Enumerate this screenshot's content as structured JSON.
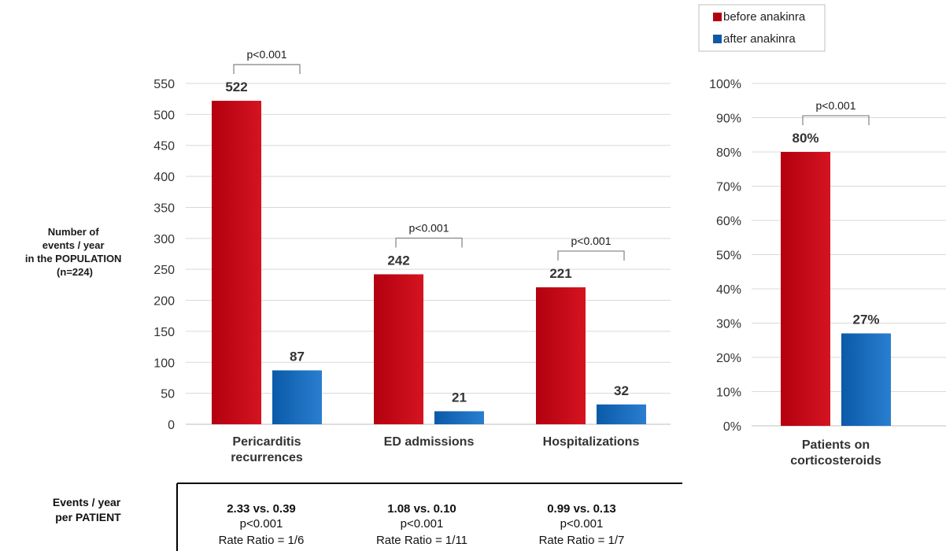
{
  "colors": {
    "before": "#b3000f",
    "before_light": "#d41420",
    "after": "#0a5aa8",
    "after_light": "#2a7ed0",
    "grid": "#d9d9d9",
    "bracket": "#8c8c8c"
  },
  "legend": {
    "before": "before anakinra",
    "after": "after anakinra"
  },
  "left_ylabel": [
    "Number of",
    "events / year",
    "in the POPULATION",
    "(n=224)"
  ],
  "right_ylabel": [],
  "table": {
    "row_label": [
      "Events / year",
      "per PATIENT"
    ],
    "cells": [
      {
        "ratio": "2.33 vs. 0.39",
        "p": "p<0.001",
        "rr": "Rate Ratio = 1/6"
      },
      {
        "ratio": "1.08 vs. 0.10",
        "p": "p<0.001",
        "rr": "Rate Ratio = 1/11"
      },
      {
        "ratio": "0.99 vs. 0.13",
        "p": "p<0.001",
        "rr": "Rate Ratio = 1/7"
      }
    ]
  },
  "chart_data": [
    {
      "type": "bar",
      "title": "",
      "ylabel": "Number of events / year in the POPULATION (n=224)",
      "ylim": [
        0,
        550
      ],
      "yticks": [
        0,
        50,
        100,
        150,
        200,
        250,
        300,
        350,
        400,
        450,
        500,
        550
      ],
      "ytick_labels": [
        "0",
        "50",
        "100",
        "150",
        "200",
        "250",
        "300",
        "350",
        "400",
        "450",
        "500",
        "550"
      ],
      "grid": true,
      "legend": "top-right",
      "categories": [
        [
          "Pericarditis",
          "recurrences"
        ],
        [
          "ED admissions"
        ],
        [
          "Hospitalizations"
        ]
      ],
      "series": [
        {
          "name": "before anakinra",
          "values": [
            522,
            242,
            221
          ],
          "labels": [
            "522",
            "242",
            "221"
          ]
        },
        {
          "name": "after anakinra",
          "values": [
            87,
            21,
            32
          ],
          "labels": [
            "87",
            "21",
            "32"
          ]
        }
      ],
      "annotations": [
        "p<0.001",
        "p<0.001",
        "p<0.001"
      ]
    },
    {
      "type": "bar",
      "title": "",
      "ylabel": "",
      "ylim": [
        0,
        100
      ],
      "yticks": [
        0,
        10,
        20,
        30,
        40,
        50,
        60,
        70,
        80,
        90,
        100
      ],
      "ytick_labels": [
        "0%",
        "10%",
        "20%",
        "30%",
        "40%",
        "50%",
        "60%",
        "70%",
        "80%",
        "90%",
        "100%"
      ],
      "grid": true,
      "categories": [
        [
          "Patients on",
          "corticosteroids"
        ]
      ],
      "series": [
        {
          "name": "before anakinra",
          "values": [
            80
          ],
          "labels": [
            "80%"
          ]
        },
        {
          "name": "after anakinra",
          "values": [
            27
          ],
          "labels": [
            "27%"
          ]
        }
      ],
      "annotations": [
        "p<0.001"
      ]
    }
  ]
}
